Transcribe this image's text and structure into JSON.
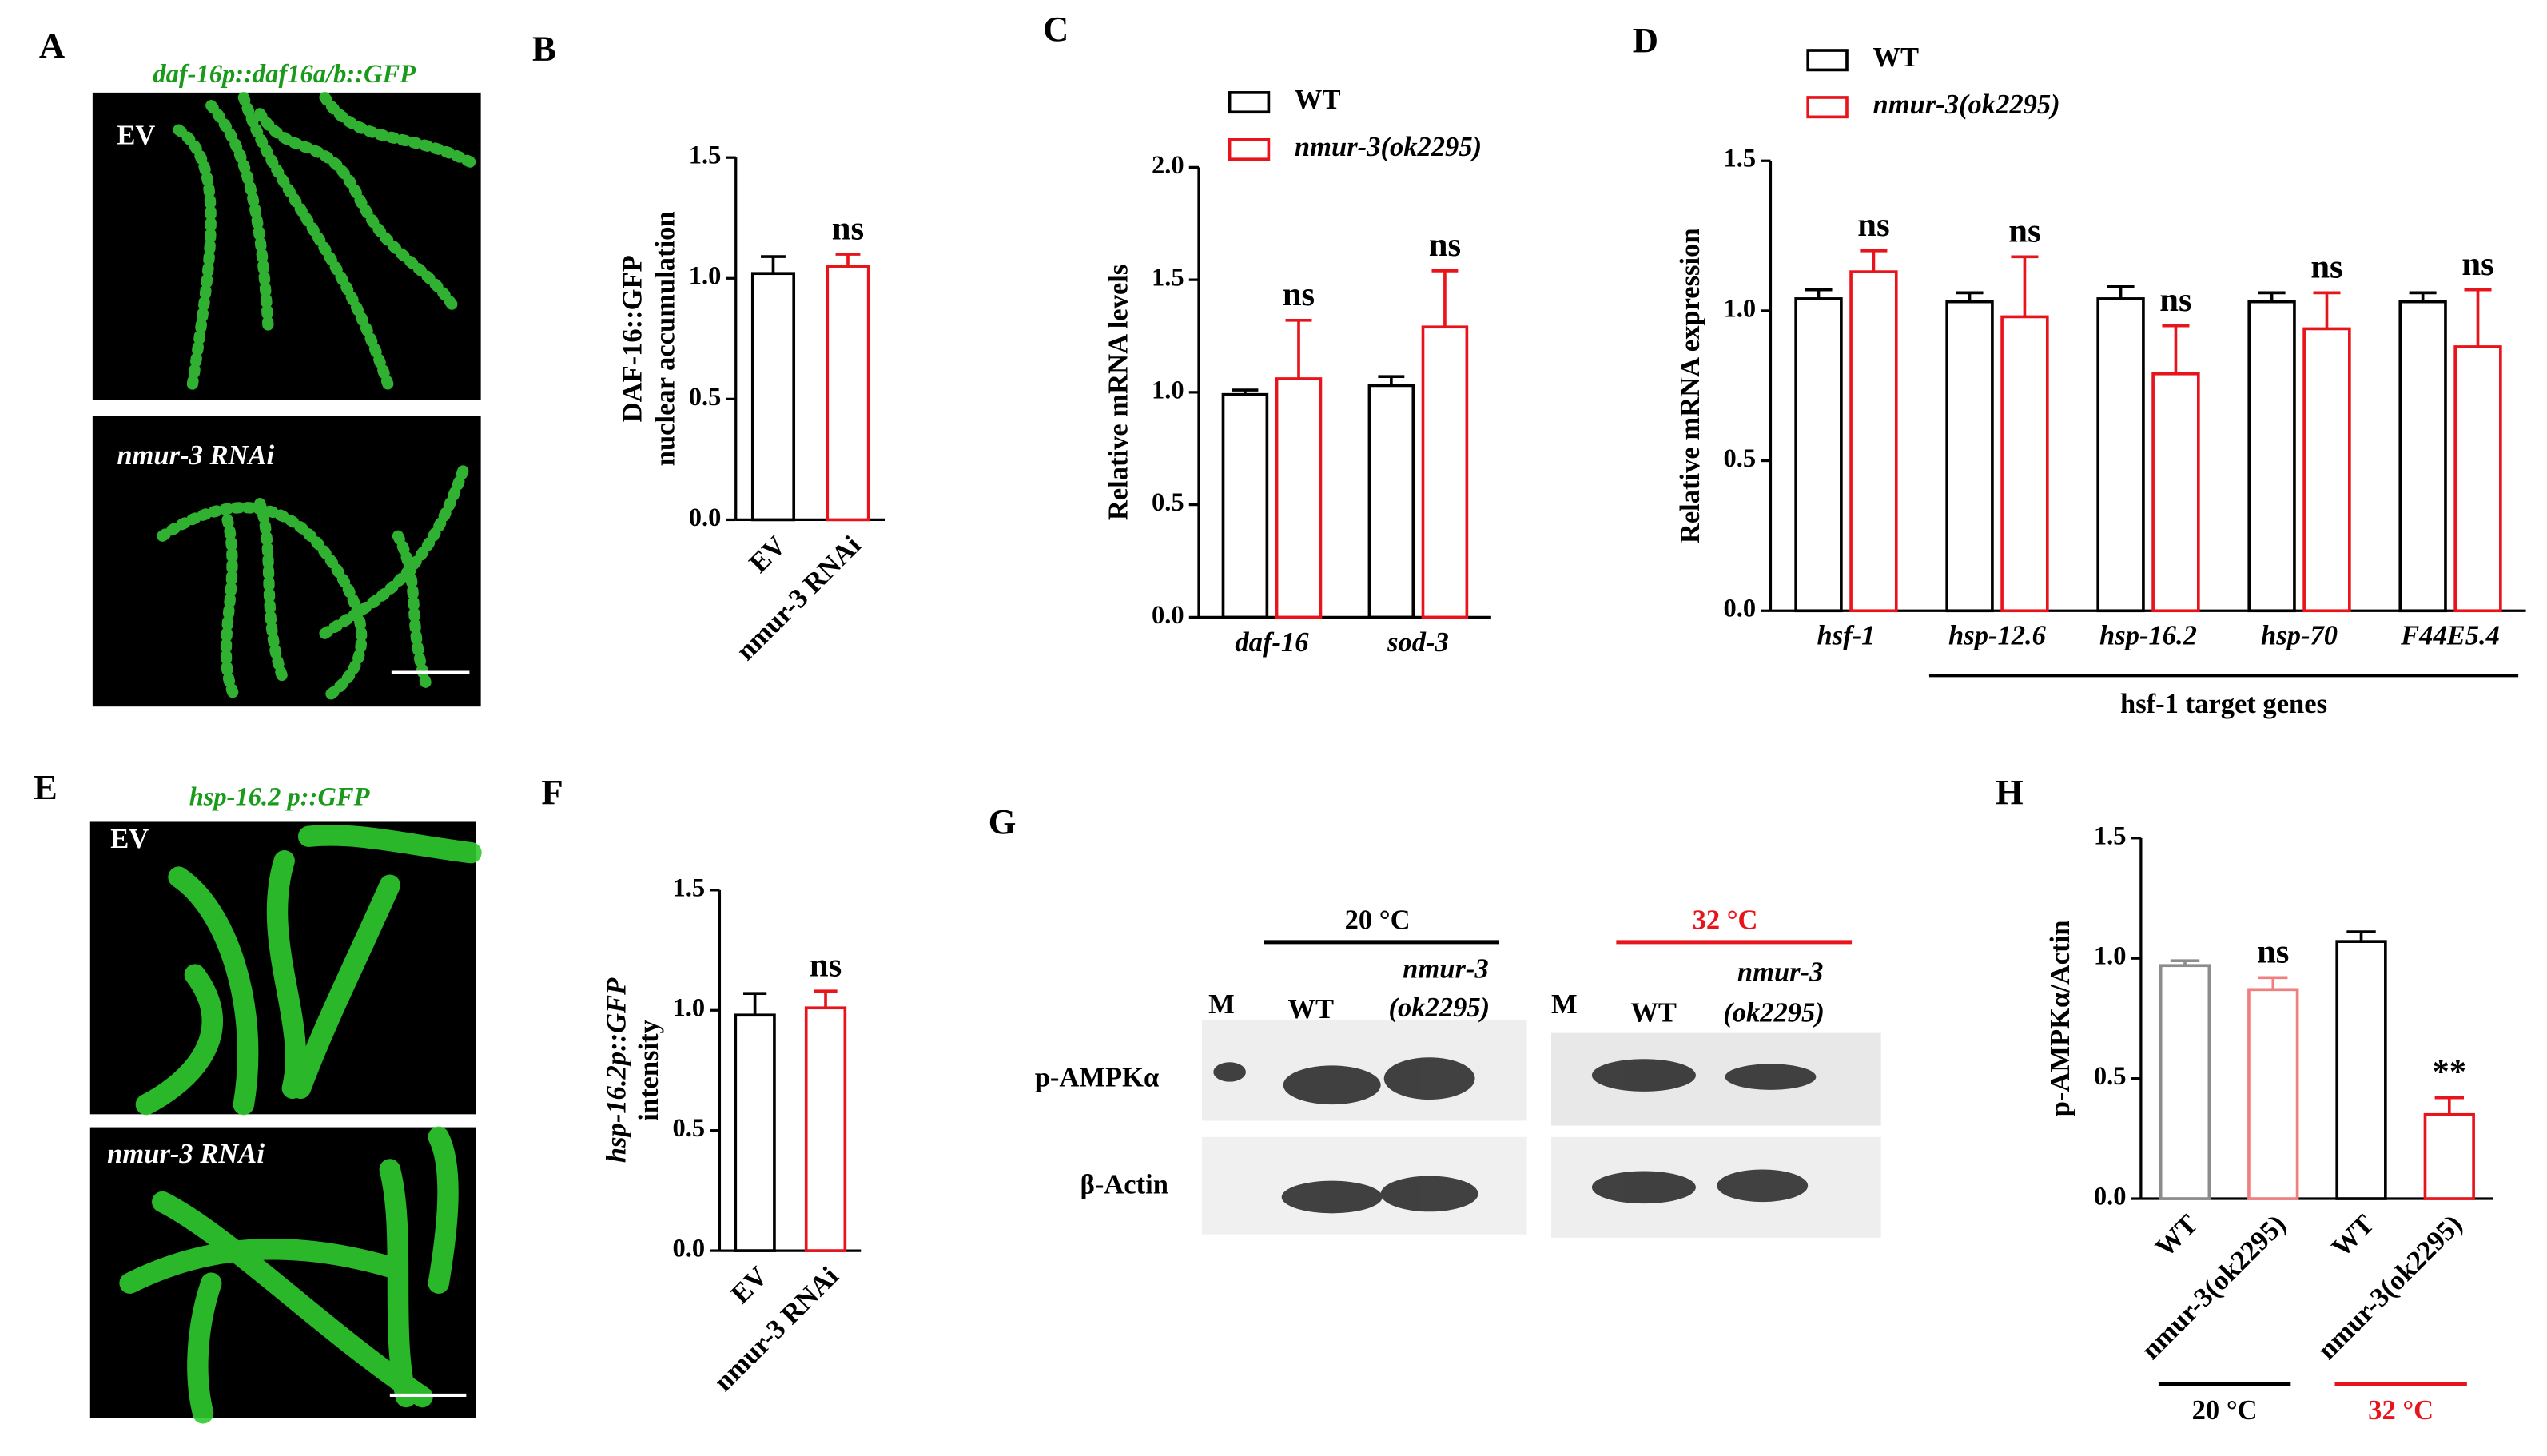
{
  "image_panels": [
    {
      "letter": "A",
      "title": "daf-16p::daf16a/b::GFP",
      "images": [
        "EV",
        "nmur-3 RNAi"
      ]
    },
    {
      "letter": "E",
      "title": "hsp-16.2 p::GFP",
      "images": [
        "EV",
        "nmur-3 RNAi"
      ]
    }
  ],
  "blot_panel": {
    "letter": "G",
    "groups": [
      {
        "label": "20 °C",
        "color": "#000000",
        "lanes": [
          "M",
          "WT",
          "nmur-3",
          "(ok2295)"
        ]
      },
      {
        "label": "32 °C",
        "color": "#e8141b",
        "lanes": [
          "M",
          "WT",
          "nmur-3",
          "(ok2295)"
        ]
      }
    ],
    "rows": [
      "p-AMPKα",
      "β-Actin"
    ]
  },
  "chart_data": [
    {
      "type": "bar",
      "panel": "B",
      "ylabel": [
        "DAF-16::GFP",
        "nuclear accumulation"
      ],
      "categories": [
        "EV",
        "nmur-3 RNAi"
      ],
      "values": [
        1.02,
        1.05
      ],
      "errors": [
        0.07,
        0.05
      ],
      "colors": [
        "#000000",
        "#e8141b"
      ],
      "labels": [
        null,
        "ns"
      ],
      "ylim": [
        0,
        1.5
      ],
      "yticks": [
        {
          "value": 0,
          "label": "0.0"
        },
        {
          "value": 0.5,
          "label": "0.5"
        },
        {
          "value": 1,
          "label": "1.0"
        },
        {
          "value": 1.5,
          "label": "1.5"
        }
      ]
    },
    {
      "type": "grouped-bar",
      "panel": "C",
      "ylabel": [
        "Relative mRNA levels"
      ],
      "categories": [
        "daf-16",
        "sod-3"
      ],
      "series": [
        {
          "name": "WT",
          "color": "#000000",
          "values": [
            0.99,
            1.03
          ],
          "errors": [
            0.02,
            0.04
          ],
          "labels": [
            null,
            null
          ]
        },
        {
          "name": "nmur-3(ok2295)",
          "color": "#e8141b",
          "values": [
            1.06,
            1.29
          ],
          "errors": [
            0.26,
            0.25
          ],
          "labels": [
            "ns",
            "ns"
          ]
        }
      ],
      "ylim": [
        0,
        2
      ],
      "yticks": [
        {
          "value": 0,
          "label": "0.0"
        },
        {
          "value": 0.5,
          "label": "0.5"
        },
        {
          "value": 1,
          "label": "1.0"
        },
        {
          "value": 1.5,
          "label": "1.5"
        },
        {
          "value": 2,
          "label": "2.0"
        }
      ]
    },
    {
      "type": "grouped-bar",
      "panel": "D",
      "ylabel": [
        "Relative mRNA expression"
      ],
      "categories": [
        "hsf-1",
        "hsp-12.6",
        "hsp-16.2",
        "hsp-70",
        "F44E5.4"
      ],
      "group_label": "hsf-1 target genes",
      "series": [
        {
          "name": "WT",
          "color": "#000000",
          "values": [
            1.04,
            1.03,
            1.04,
            1.03,
            1.03
          ],
          "errors": [
            0.03,
            0.03,
            0.04,
            0.03,
            0.03
          ],
          "labels": [
            null,
            null,
            null,
            null,
            null
          ]
        },
        {
          "name": "nmur-3(ok2295)",
          "color": "#e8141b",
          "values": [
            1.13,
            0.98,
            0.79,
            0.94,
            0.88
          ],
          "errors": [
            0.07,
            0.2,
            0.16,
            0.12,
            0.19
          ],
          "labels": [
            "ns",
            "ns",
            "ns",
            "ns",
            "ns"
          ]
        }
      ],
      "ylim": [
        0,
        1.5
      ],
      "yticks": [
        {
          "value": 0,
          "label": "0.0"
        },
        {
          "value": 0.5,
          "label": "0.5"
        },
        {
          "value": 1,
          "label": "1.0"
        },
        {
          "value": 1.5,
          "label": "1.5"
        }
      ]
    },
    {
      "type": "bar",
      "panel": "F",
      "ylabel": [
        "hsp-16.2p::GFP",
        "intensity"
      ],
      "categories": [
        "EV",
        "nmur-3 RNAi"
      ],
      "values": [
        0.98,
        1.01
      ],
      "errors": [
        0.09,
        0.07
      ],
      "colors": [
        "#000000",
        "#e8141b"
      ],
      "labels": [
        null,
        "ns"
      ],
      "ylim": [
        0,
        1.5
      ],
      "yticks": [
        {
          "value": 0,
          "label": "0.0"
        },
        {
          "value": 0.5,
          "label": "0.5"
        },
        {
          "value": 1,
          "label": "1.0"
        },
        {
          "value": 1.5,
          "label": "1.5"
        }
      ]
    },
    {
      "type": "bar",
      "panel": "H",
      "ylabel": [
        "p-AMPKα/Actin"
      ],
      "categories": [
        "WT",
        "nmur-3(ok2295)",
        "WT",
        "nmur-3(ok2295)"
      ],
      "values": [
        0.97,
        0.87,
        1.07,
        0.35
      ],
      "errors": [
        0.02,
        0.05,
        0.04,
        0.07
      ],
      "colors": [
        "#8c8c8c",
        "#f08080",
        "#000000",
        "#e8141b"
      ],
      "labels": [
        null,
        "ns",
        null,
        "**"
      ],
      "groups": [
        {
          "label": "20 °C",
          "color": "#000000"
        },
        {
          "label": "32 °C",
          "color": "#e8141b"
        }
      ],
      "ylim": [
        0,
        1.5
      ],
      "yticks": [
        {
          "value": 0,
          "label": "0.0"
        },
        {
          "value": 0.5,
          "label": "0.5"
        },
        {
          "value": 1,
          "label": "1.0"
        },
        {
          "value": 1.5,
          "label": "1.5"
        }
      ]
    }
  ]
}
